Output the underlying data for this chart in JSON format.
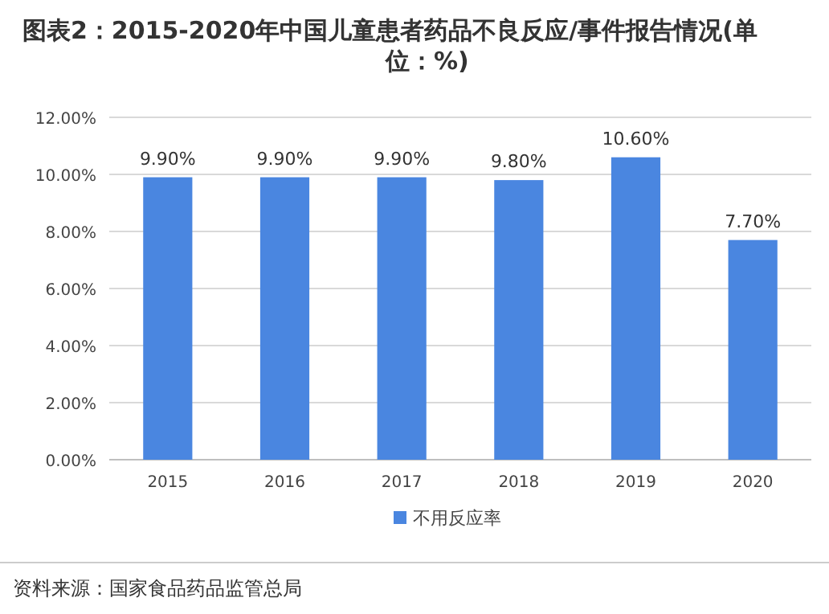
{
  "chart_data": {
    "type": "bar",
    "title": "图表2：2015-2020年中国儿童患者药品不良反应/事件报告情况(单位：%)",
    "categories": [
      "2015",
      "2016",
      "2017",
      "2018",
      "2019",
      "2020"
    ],
    "series": [
      {
        "name": "不用反应率",
        "color": "#4a86e0",
        "values": [
          9.9,
          9.9,
          9.9,
          9.8,
          10.6,
          7.7
        ],
        "value_labels": [
          "9.90%",
          "9.90%",
          "9.90%",
          "9.80%",
          "10.60%",
          "7.70%"
        ]
      }
    ],
    "ylim": [
      0,
      12
    ],
    "yticks": [
      {
        "value": 0,
        "label": "0.00%"
      },
      {
        "value": 2,
        "label": "2.00%"
      },
      {
        "value": 4,
        "label": "4.00%"
      },
      {
        "value": 6,
        "label": "6.00%"
      },
      {
        "value": 8,
        "label": "8.00%"
      },
      {
        "value": 10,
        "label": "10.00%"
      },
      {
        "value": 12,
        "label": "12.00%"
      }
    ],
    "grid": "y",
    "legend": "bottom",
    "annotations": [
      "资料来源：国家食品药品监管总局"
    ]
  }
}
